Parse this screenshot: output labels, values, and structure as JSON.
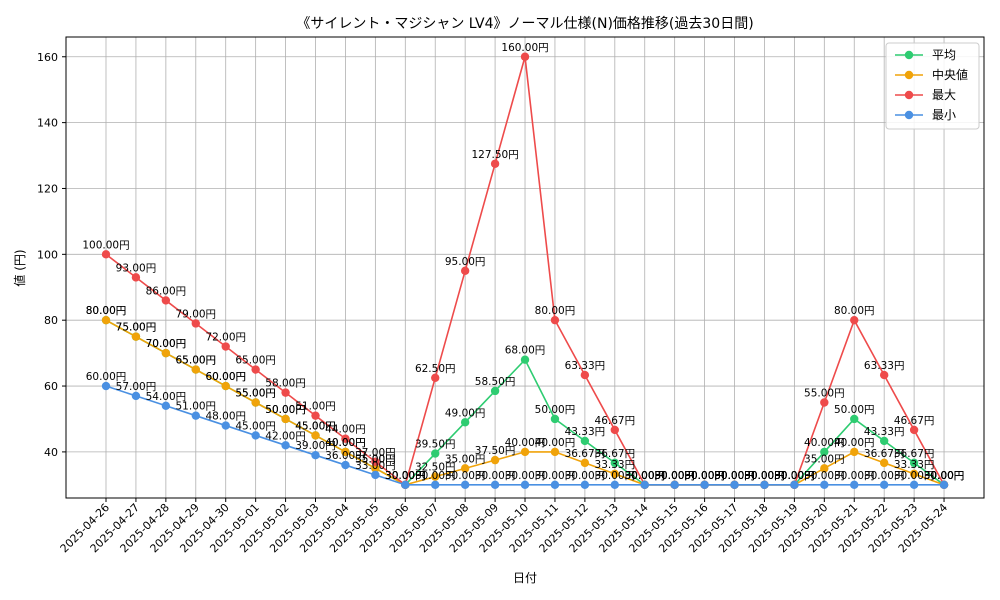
{
  "chart_data": {
    "type": "line",
    "title": "《サイレント・マジシャン LV4》ノーマル仕様(N)価格推移(過去30日間)",
    "xlabel": "日付",
    "ylabel": "値 (円)",
    "value_suffix": "円",
    "ylim": [
      26,
      166
    ],
    "yticks": [
      40,
      60,
      80,
      100,
      120,
      140,
      160
    ],
    "grid": true,
    "legend_position": "top-right",
    "categories": [
      "2025-04-26",
      "2025-04-27",
      "2025-04-28",
      "2025-04-29",
      "2025-04-30",
      "2025-05-01",
      "2025-05-02",
      "2025-05-03",
      "2025-05-04",
      "2025-05-05",
      "2025-05-06",
      "2025-05-07",
      "2025-05-08",
      "2025-05-09",
      "2025-05-10",
      "2025-05-11",
      "2025-05-12",
      "2025-05-13",
      "2025-05-14",
      "2025-05-15",
      "2025-05-16",
      "2025-05-17",
      "2025-05-18",
      "2025-05-19",
      "2025-05-20",
      "2025-05-21",
      "2025-05-22",
      "2025-05-23",
      "2025-05-24"
    ],
    "series": [
      {
        "name": "平均",
        "color": "#2ecc71",
        "values": [
          80,
          75,
          70,
          65,
          60,
          55,
          50,
          45,
          40,
          35,
          30,
          39.5,
          49,
          58.5,
          68,
          50,
          43.33,
          36.67,
          30,
          30,
          30,
          30,
          30,
          30,
          40,
          50,
          43.33,
          36.67,
          30
        ]
      },
      {
        "name": "中央値",
        "color": "#f0a30a",
        "values": [
          80,
          75,
          70,
          65,
          60,
          55,
          50,
          45,
          40,
          35,
          30,
          32.5,
          35,
          37.5,
          40,
          40,
          36.67,
          33.33,
          30,
          30,
          30,
          30,
          30,
          30,
          35,
          40,
          36.67,
          33.33,
          30
        ]
      },
      {
        "name": "最大",
        "color": "#ee4b4b",
        "values": [
          100,
          93,
          86,
          79,
          72,
          65,
          58,
          51,
          44,
          37,
          30,
          62.5,
          95,
          127.5,
          160,
          80,
          63.33,
          46.67,
          30,
          30,
          30,
          30,
          30,
          30,
          55,
          80,
          63.33,
          46.67,
          30
        ]
      },
      {
        "name": "最小",
        "color": "#4a90e2",
        "values": [
          60,
          57,
          54,
          51,
          48,
          45,
          42,
          39,
          36,
          33,
          30,
          30,
          30,
          30,
          30,
          30,
          30,
          30,
          30,
          30,
          30,
          30,
          30,
          30,
          30,
          30,
          30,
          30,
          30
        ]
      }
    ]
  }
}
